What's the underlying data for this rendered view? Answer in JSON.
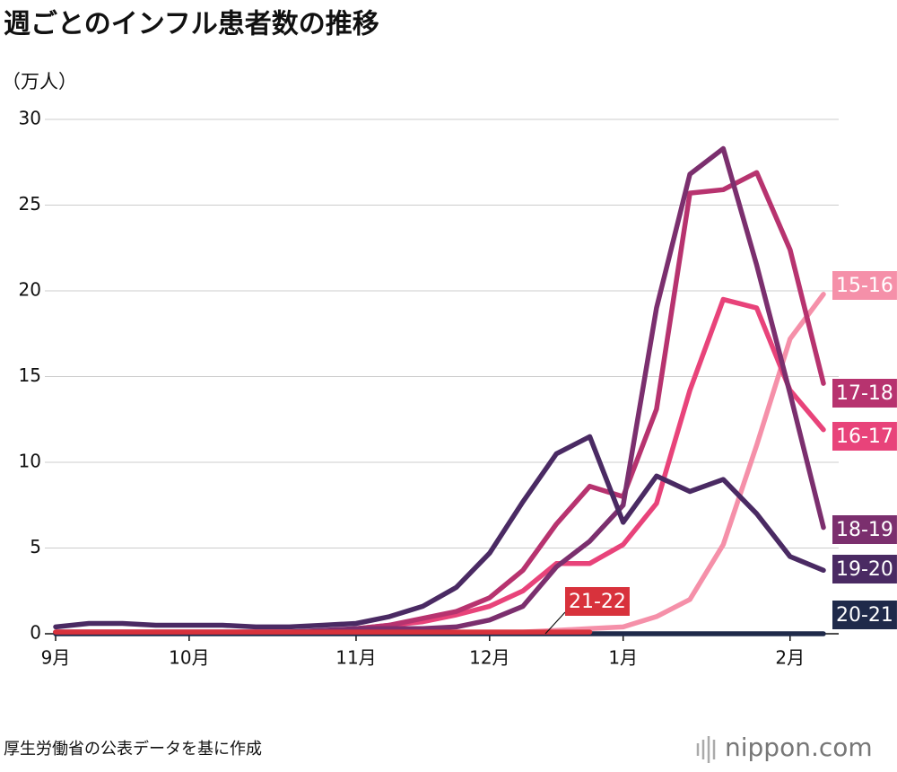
{
  "chart_data": {
    "type": "line",
    "title": "週ごとのインフル患者数の推移",
    "y_label": "（万人）",
    "source": "厚生労働省の公表データを基に作成",
    "logo": "nippon.com",
    "categories": [
      "9月",
      null,
      null,
      null,
      "10月",
      null,
      null,
      null,
      null,
      "11月",
      null,
      null,
      null,
      "12月",
      null,
      null,
      null,
      "1月",
      null,
      null,
      null,
      null,
      "2月",
      null
    ],
    "ylim": [
      0,
      30
    ],
    "yticks": [
      0,
      5,
      10,
      15,
      20,
      25,
      30
    ],
    "grid": true,
    "series": [
      {
        "name": "15-16",
        "color": "#f590a9",
        "values": [
          0.1,
          0.1,
          0.1,
          0.1,
          0.1,
          0.1,
          0.1,
          0.1,
          0.1,
          0.1,
          0.1,
          0.1,
          0.1,
          0.1,
          0.1,
          0.2,
          0.3,
          0.4,
          1.0,
          2.0,
          5.2,
          11.0,
          17.2,
          19.8
        ]
      },
      {
        "name": "16-17",
        "color": "#e8437a",
        "values": [
          0.1,
          0.1,
          0.1,
          0.1,
          0.1,
          0.1,
          0.1,
          0.1,
          0.1,
          0.3,
          0.5,
          0.7,
          1.1,
          1.6,
          2.5,
          4.1,
          4.1,
          5.2,
          7.6,
          14.2,
          19.5,
          19.0,
          14.2,
          11.9
        ]
      },
      {
        "name": "17-18",
        "color": "#b7336f",
        "values": [
          0.1,
          0.1,
          0.1,
          0.1,
          0.1,
          0.1,
          0.1,
          0.1,
          0.1,
          0.3,
          0.5,
          0.9,
          1.3,
          2.1,
          3.7,
          6.4,
          8.6,
          8.0,
          13.1,
          25.7,
          25.9,
          26.9,
          22.4,
          14.6
        ]
      },
      {
        "name": "18-19",
        "color": "#7b2f6e",
        "values": [
          0.1,
          0.1,
          0.1,
          0.1,
          0.1,
          0.1,
          0.1,
          0.1,
          0.2,
          0.3,
          0.3,
          0.3,
          0.4,
          0.8,
          1.6,
          3.9,
          5.4,
          7.5,
          19.0,
          26.8,
          28.3,
          21.5,
          14.0,
          6.2
        ]
      },
      {
        "name": "19-20",
        "color": "#4a2a63",
        "values": [
          0.4,
          0.6,
          0.6,
          0.5,
          0.5,
          0.5,
          0.4,
          0.4,
          0.5,
          0.6,
          1.0,
          1.6,
          2.7,
          4.7,
          7.7,
          10.5,
          11.5,
          6.5,
          9.2,
          8.3,
          9.0,
          7.0,
          4.5,
          3.7
        ]
      },
      {
        "name": "20-21",
        "color": "#1f2a4a",
        "values": [
          0,
          0,
          0,
          0,
          0,
          0,
          0,
          0,
          0,
          0,
          0,
          0,
          0,
          0,
          0,
          0,
          0,
          0,
          0,
          0,
          0,
          0,
          0,
          0
        ]
      },
      {
        "name": "21-22",
        "color": "#d8323c",
        "values": [
          0.1,
          0.1,
          0.1,
          0.1,
          0.1,
          0.1,
          0.1,
          0.1,
          0.1,
          0.1,
          0.1,
          0.1,
          0.1,
          0.1,
          0.1,
          0.1,
          0.1,
          null,
          null,
          null,
          null,
          null,
          null,
          null
        ]
      }
    ]
  }
}
